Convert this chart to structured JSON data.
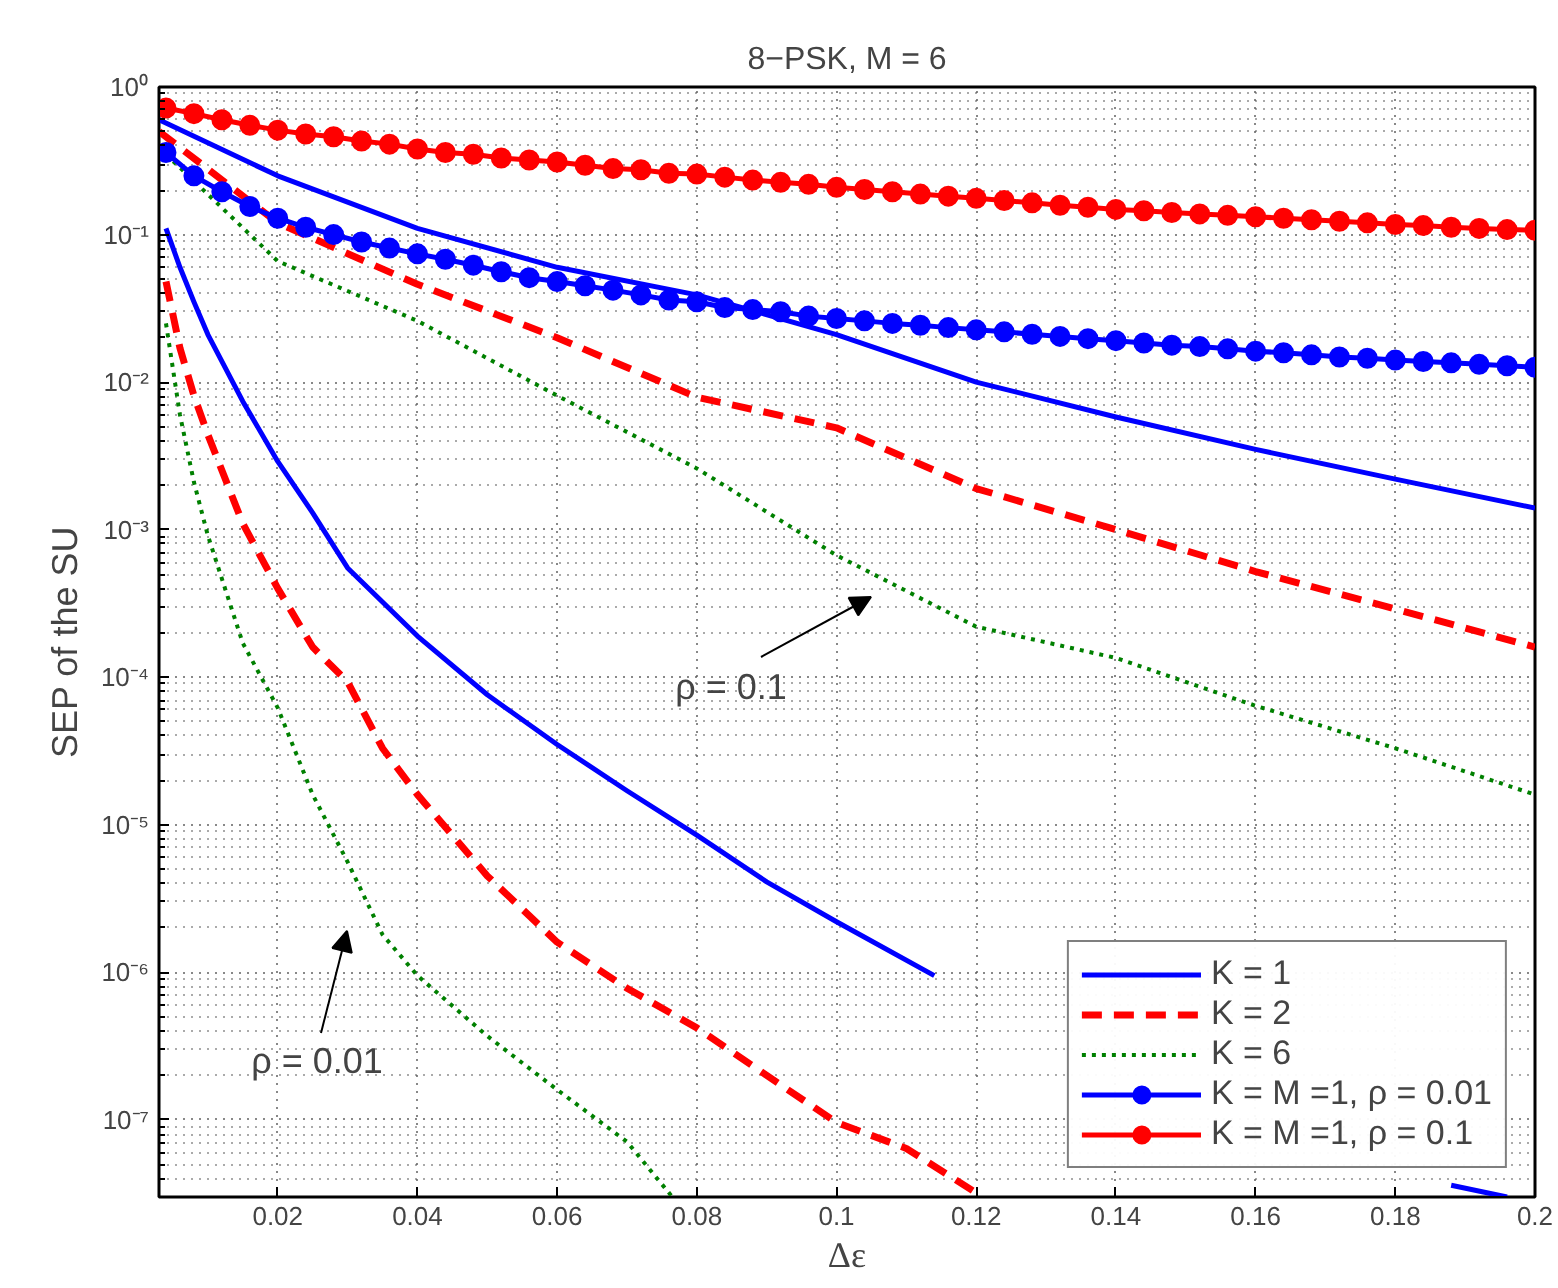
{
  "chart_data": {
    "type": "line",
    "title": "8−PSK, M = 6",
    "xlabel": "Δε",
    "ylabel": "SEP of the SU",
    "log": "y",
    "grid": true,
    "legend": "bottom right",
    "xlim": [
      0.003,
      0.2
    ],
    "xticks": [
      0.02,
      0.04,
      0.06,
      0.08,
      0.1,
      0.12,
      0.14,
      0.16,
      0.18,
      0.2
    ],
    "ylim": [
      3e-08,
      1
    ],
    "yticks": [
      {
        "value": 1,
        "label": "10⁰"
      },
      {
        "value": 0.1,
        "label": "10⁻¹"
      },
      {
        "value": 0.01,
        "label": "10⁻²"
      },
      {
        "value": 0.001,
        "label": "10⁻³"
      },
      {
        "value": 0.0001,
        "label": "10⁻⁴"
      },
      {
        "value": 1e-05,
        "label": "10⁻⁵"
      },
      {
        "value": 1e-06,
        "label": "10⁻⁶"
      },
      {
        "value": 1e-07,
        "label": "10⁻⁷"
      }
    ],
    "annotations": [
      "ρ = 0.1",
      "ρ = 0.01"
    ],
    "series": [
      {
        "name": "K = 1",
        "color": "#0000ff",
        "line_style": "solid",
        "x": [
          0.003,
          0.02,
          0.04,
          0.06,
          0.08,
          0.1,
          0.12,
          0.14,
          0.16,
          0.18,
          0.2
        ],
        "values": [
          0.6,
          0.25,
          0.11,
          0.06,
          0.039,
          0.021,
          0.01,
          0.0058,
          0.0035,
          0.0022,
          0.0014
        ]
      },
      {
        "color": "#0000ff",
        "line_style": "solid",
        "x": [
          0.004,
          0.006,
          0.008,
          0.01,
          0.015,
          0.02,
          0.025,
          0.03,
          0.04,
          0.05,
          0.06,
          0.07,
          0.08,
          0.09,
          0.1,
          0.114,
          0.15,
          0.188,
          0.196
        ],
        "values": [
          0.11,
          0.06,
          0.035,
          0.021,
          0.0074,
          0.0029,
          0.0013,
          0.00055,
          0.00019,
          7.6e-05,
          3.5e-05,
          1.7e-05,
          8.5e-06,
          4.1e-06,
          2.2e-06,
          9.5e-07,
          null,
          3.6e-08,
          3e-08
        ]
      },
      {
        "name": "K = 2",
        "color": "#ff0000",
        "line_style": "dashed",
        "x": [
          0.003,
          0.02,
          0.04,
          0.06,
          0.08,
          0.1,
          0.12,
          0.14,
          0.16,
          0.18,
          0.2
        ],
        "values": [
          0.5,
          0.12,
          0.046,
          0.02,
          0.0079,
          0.0049,
          0.0019,
          0.001,
          0.00052,
          0.00029,
          0.00016
        ]
      },
      {
        "color": "#ff0000",
        "line_style": "dashed",
        "x": [
          0.004,
          0.006,
          0.008,
          0.01,
          0.015,
          0.02,
          0.025,
          0.03,
          0.035,
          0.04,
          0.05,
          0.06,
          0.07,
          0.08,
          0.09,
          0.1,
          0.11,
          0.12
        ],
        "values": [
          0.048,
          0.017,
          0.0081,
          0.0044,
          0.0011,
          0.0004,
          0.00016,
          9.3e-05,
          3.3e-05,
          1.6e-05,
          4.5e-06,
          1.6e-06,
          7.8e-07,
          4.2e-07,
          2e-07,
          9.6e-08,
          6.4e-08,
          3.2e-08
        ]
      },
      {
        "name": "K = 6",
        "color": "#008000",
        "line_style": "dotted",
        "x": [
          0.004,
          0.02,
          0.04,
          0.06,
          0.08,
          0.1,
          0.12,
          0.14,
          0.16,
          0.18,
          0.2
        ],
        "values": [
          0.35,
          0.066,
          0.026,
          0.0081,
          0.0026,
          0.00067,
          0.00022,
          0.000135,
          6.4e-05,
          3.3e-05,
          1.6e-05
        ]
      },
      {
        "color": "#008000",
        "line_style": "dotted",
        "x": [
          0.004,
          0.006,
          0.008,
          0.01,
          0.015,
          0.02,
          0.025,
          0.03,
          0.035,
          0.04,
          0.05,
          0.06,
          0.07,
          0.0765
        ],
        "values": [
          0.025,
          0.006,
          0.0021,
          0.00091,
          0.00017,
          6.2e-05,
          1.6e-05,
          5.6e-06,
          1.8e-06,
          9.5e-07,
          3.7e-07,
          1.6e-07,
          7.1e-08,
          3e-08
        ]
      },
      {
        "name": "K = M =1, ρ = 0.01",
        "color": "#0000ff",
        "line_style": "solid",
        "marker": "circle",
        "x": [
          0.004,
          0.008,
          0.012,
          0.016,
          0.02,
          0.024,
          0.028,
          0.032,
          0.036,
          0.04,
          0.044,
          0.048,
          0.052,
          0.056,
          0.06,
          0.064,
          0.068,
          0.072,
          0.076,
          0.08,
          0.084,
          0.088,
          0.092,
          0.096,
          0.1,
          0.104,
          0.108,
          0.112,
          0.116,
          0.12,
          0.124,
          0.128,
          0.132,
          0.136,
          0.14,
          0.144,
          0.148,
          0.152,
          0.156,
          0.16,
          0.164,
          0.168,
          0.172,
          0.176,
          0.18,
          0.184,
          0.188,
          0.192,
          0.196,
          0.2
        ],
        "values": [
          0.36,
          0.25,
          0.195,
          0.155,
          0.129,
          0.112,
          0.1,
          0.089,
          0.081,
          0.074,
          0.068,
          0.062,
          0.056,
          0.051,
          0.048,
          0.045,
          0.042,
          0.039,
          0.036,
          0.035,
          0.032,
          0.031,
          0.03,
          0.028,
          0.027,
          0.026,
          0.025,
          0.0243,
          0.0234,
          0.0226,
          0.0219,
          0.0211,
          0.0204,
          0.0197,
          0.0191,
          0.0184,
          0.0178,
          0.0174,
          0.0168,
          0.0162,
          0.0158,
          0.0153,
          0.0148,
          0.0145,
          0.0141,
          0.0138,
          0.0135,
          0.0132,
          0.0129,
          0.0126
        ]
      },
      {
        "name": "K = M =1, ρ = 0.1",
        "color": "#ff0000",
        "line_style": "solid",
        "marker": "circle",
        "x": [
          0.004,
          0.008,
          0.012,
          0.016,
          0.02,
          0.024,
          0.028,
          0.032,
          0.036,
          0.04,
          0.044,
          0.048,
          0.052,
          0.056,
          0.06,
          0.064,
          0.068,
          0.072,
          0.076,
          0.08,
          0.084,
          0.088,
          0.092,
          0.096,
          0.1,
          0.104,
          0.108,
          0.112,
          0.116,
          0.12,
          0.124,
          0.128,
          0.132,
          0.136,
          0.14,
          0.144,
          0.148,
          0.152,
          0.156,
          0.16,
          0.164,
          0.168,
          0.172,
          0.176,
          0.18,
          0.184,
          0.188,
          0.192,
          0.196,
          0.2
        ],
        "values": [
          0.72,
          0.66,
          0.6,
          0.55,
          0.51,
          0.48,
          0.46,
          0.43,
          0.41,
          0.38,
          0.36,
          0.35,
          0.33,
          0.32,
          0.31,
          0.295,
          0.28,
          0.275,
          0.26,
          0.257,
          0.245,
          0.234,
          0.226,
          0.219,
          0.209,
          0.202,
          0.195,
          0.188,
          0.182,
          0.176,
          0.17,
          0.164,
          0.158,
          0.153,
          0.148,
          0.145,
          0.141,
          0.138,
          0.135,
          0.132,
          0.129,
          0.126,
          0.123,
          0.12,
          0.117,
          0.115,
          0.112,
          0.11,
          0.108,
          0.107
        ]
      }
    ]
  }
}
